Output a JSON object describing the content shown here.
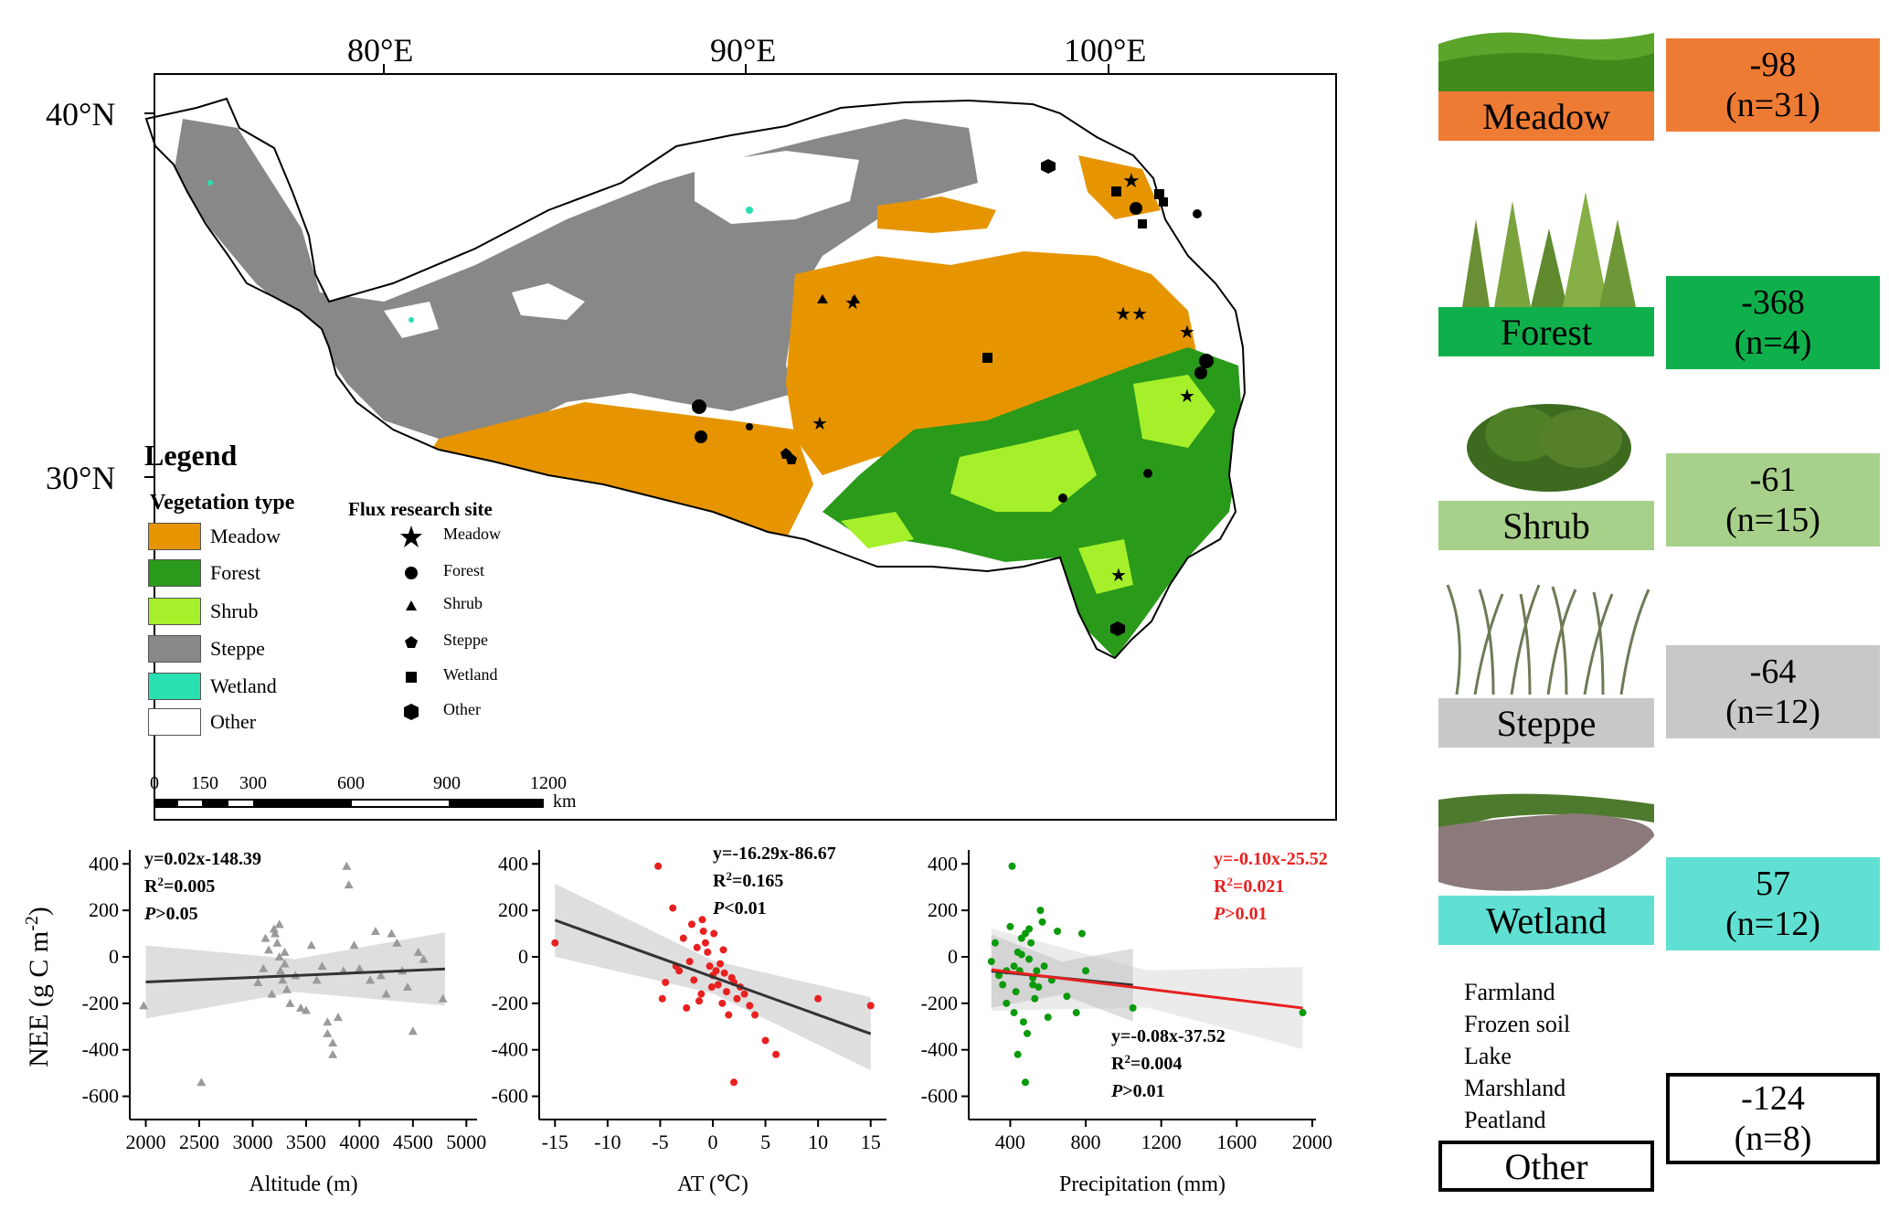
{
  "map": {
    "lon_labels": [
      "80°E",
      "90°E",
      "100°E"
    ],
    "lat_labels": [
      "40°N",
      "30°N"
    ],
    "legend": {
      "title": "Legend",
      "vegetation_heading": "Vegetation type",
      "vegetation_types": [
        {
          "label": "Meadow",
          "color": "#e69500"
        },
        {
          "label": "Forest",
          "color": "#2a9a1a"
        },
        {
          "label": "Shrub",
          "color": "#a5f02a"
        },
        {
          "label": "Steppe",
          "color": "#888888"
        },
        {
          "label": "Wetland",
          "color": "#28e0b0"
        },
        {
          "label": "Other",
          "color": "#ffffff"
        }
      ],
      "site_heading": "Flux research site",
      "site_types": [
        {
          "label": "Meadow",
          "icon": "star-icon"
        },
        {
          "label": "Forest",
          "icon": "circle-icon"
        },
        {
          "label": "Shrub",
          "icon": "triangle-icon"
        },
        {
          "label": "Steppe",
          "icon": "pentagon-icon"
        },
        {
          "label": "Wetland",
          "icon": "square-icon"
        },
        {
          "label": "Other",
          "icon": "hexagon-icon"
        }
      ]
    },
    "scale_bar": {
      "ticks": [
        "0",
        "150",
        "300",
        "600",
        "900",
        "1200"
      ],
      "unit": "km"
    }
  },
  "ecosystems": [
    {
      "name": "Meadow",
      "nee": "-98",
      "n": "(n=31)",
      "color": "#ee7b34"
    },
    {
      "name": "Forest",
      "nee": "-368",
      "n": "(n=4)",
      "color": "#0fb04b"
    },
    {
      "name": "Shrub",
      "nee": "-61",
      "n": "(n=15)",
      "color": "#a7d18a"
    },
    {
      "name": "Steppe",
      "nee": "-64",
      "n": "(n=12)",
      "color": "#c8c8c8"
    },
    {
      "name": "Wetland",
      "nee": "57",
      "n": "(n=12)",
      "color": "#5fe0d2"
    },
    {
      "name": "Other",
      "nee": "-124",
      "n": "(n=8)",
      "color": "#ffffff",
      "members": [
        "Farmland",
        "Frozen soil",
        "Lake",
        "Marshland",
        "Peatland"
      ]
    }
  ],
  "chart_data": [
    {
      "type": "scatter",
      "xlabel": "Altitude (m)",
      "ylabel": "NEE (g C m⁻²)",
      "xlim": [
        1850,
        5100
      ],
      "ylim": [
        -700,
        460
      ],
      "xticks": [
        2000,
        2500,
        3000,
        3500,
        4000,
        4500,
        5000
      ],
      "yticks": [
        400,
        200,
        0,
        -200,
        -400,
        -600
      ],
      "marker": "triangle",
      "color": "#9a9a9a",
      "equation": "y=0.02x-148.39",
      "r2_value": "=0.005",
      "p_value": ">0.05",
      "fit": {
        "x": [
          2000,
          4800
        ],
        "y": [
          -108.4,
          -52.4
        ]
      },
      "x": [
        1980,
        2520,
        3050,
        3100,
        3120,
        3150,
        3180,
        3200,
        3210,
        3230,
        3250,
        3260,
        3280,
        3300,
        3320,
        3350,
        3400,
        3450,
        3500,
        3550,
        3600,
        3650,
        3700,
        3750,
        3800,
        3850,
        3880,
        3900,
        3950,
        4000,
        4100,
        4150,
        4200,
        4250,
        4300,
        4350,
        4400,
        4450,
        4500,
        4550,
        4600,
        4780,
        3300,
        3250,
        3700,
        3750
      ],
      "y": [
        -210,
        -540,
        -110,
        -50,
        80,
        30,
        -160,
        120,
        100,
        60,
        0,
        -60,
        -100,
        20,
        -140,
        -200,
        -80,
        -220,
        -230,
        50,
        -100,
        -40,
        -330,
        -420,
        -260,
        -60,
        390,
        310,
        50,
        -50,
        -100,
        110,
        -80,
        -160,
        100,
        60,
        -60,
        -130,
        -320,
        20,
        -10,
        -180,
        -30,
        140,
        -280,
        -370
      ]
    },
    {
      "type": "scatter",
      "xlabel": "AT (℃)",
      "ylabel": "",
      "xlim": [
        -16.5,
        16.5
      ],
      "ylim": [
        -700,
        460
      ],
      "xticks": [
        -15,
        -10,
        -5,
        0,
        5,
        10,
        15
      ],
      "yticks": [
        400,
        200,
        0,
        -200,
        -400,
        -600
      ],
      "marker": "circle",
      "color": "#e82020",
      "equation": "y=-16.29x-86.67",
      "r2_value": "=0.165",
      "p_value": "<0.01",
      "fit": {
        "x": [
          -15,
          15
        ],
        "y": [
          157.7,
          -331.0
        ]
      },
      "x": [
        -15,
        -5.2,
        -3.8,
        -3.5,
        -3.2,
        -2.8,
        -2.5,
        -2.2,
        -2,
        -1.8,
        -1.5,
        -1.3,
        -1.1,
        -0.9,
        -0.7,
        -0.5,
        -0.3,
        -0.1,
        0.1,
        0.3,
        0.5,
        0.7,
        0.9,
        1.1,
        1.3,
        1.5,
        1.8,
        2.0,
        2.3,
        2.6,
        3,
        3.5,
        4,
        5,
        6,
        10,
        15,
        -4.5,
        -4.8,
        -1,
        0,
        1,
        2
      ],
      "y": [
        60,
        390,
        210,
        -40,
        -60,
        80,
        -220,
        -20,
        140,
        -100,
        40,
        -190,
        -160,
        110,
        60,
        20,
        -40,
        -130,
        100,
        -60,
        -120,
        -30,
        -200,
        -70,
        -150,
        -250,
        -90,
        -540,
        -180,
        -130,
        -160,
        -210,
        -250,
        -360,
        -420,
        -180,
        -210,
        -110,
        -180,
        160,
        -80,
        30,
        -110
      ]
    },
    {
      "type": "scatter",
      "xlabel": "Precipitation (mm)",
      "ylabel": "",
      "xlim": [
        180,
        2020
      ],
      "ylim": [
        -700,
        460
      ],
      "xticks": [
        400,
        800,
        1200,
        1600,
        2000
      ],
      "yticks": [
        400,
        200,
        0,
        -200,
        -400,
        -600
      ],
      "marker": "circle",
      "color": "#0a9a0a",
      "equation": "y=-0.08x-37.52",
      "r2_value": "=0.004",
      "p_value": ">0.01",
      "equation2": "y=-0.10x-25.52",
      "r2_value2": "=0.021",
      "p_value2": ">0.01",
      "fit": {
        "x": [
          300,
          1050
        ],
        "y": [
          -61.5,
          -121.5
        ]
      },
      "fit2": {
        "x": [
          300,
          1950
        ],
        "y": [
          -55.5,
          -220.5
        ]
      },
      "x": [
        300,
        320,
        340,
        360,
        380,
        400,
        410,
        420,
        430,
        440,
        450,
        460,
        470,
        480,
        490,
        500,
        510,
        520,
        530,
        540,
        550,
        560,
        570,
        580,
        600,
        620,
        650,
        700,
        750,
        780,
        800,
        1050,
        1950,
        440,
        480,
        520,
        460,
        500,
        420,
        380
      ],
      "y": [
        -20,
        60,
        -80,
        -120,
        -200,
        130,
        390,
        -40,
        -150,
        20,
        -60,
        80,
        -280,
        100,
        -330,
        -10,
        60,
        -90,
        -180,
        -60,
        -130,
        200,
        150,
        -40,
        -260,
        -100,
        110,
        -170,
        -240,
        100,
        -60,
        -220,
        -240,
        -420,
        -540,
        -120,
        10,
        120,
        -240,
        -60
      ]
    }
  ]
}
